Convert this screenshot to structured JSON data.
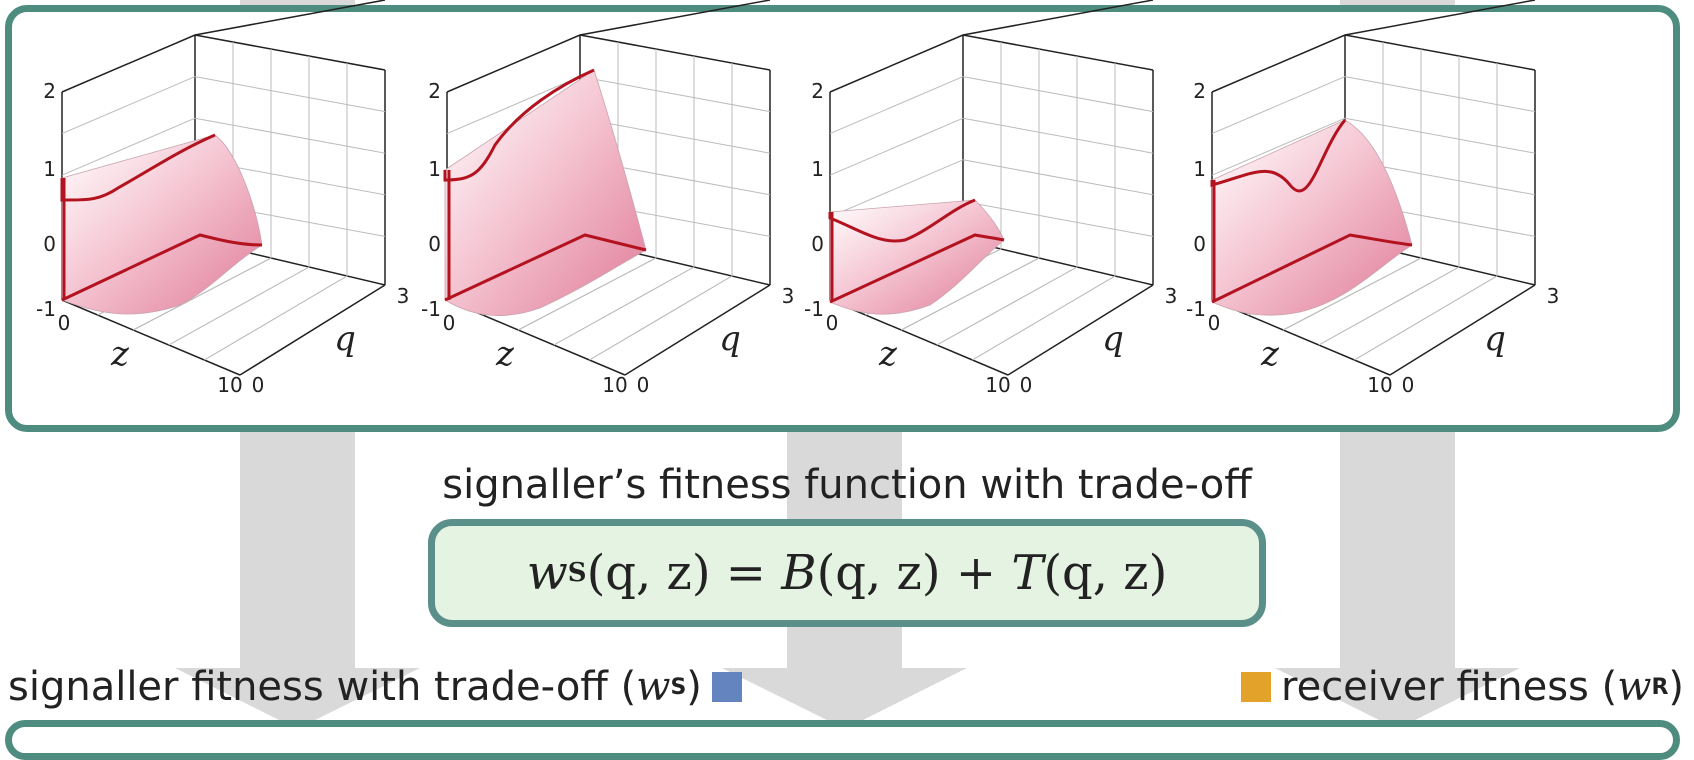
{
  "plots": [
    {
      "z_label": "z",
      "q_label": "q",
      "w_ticks": [
        "2",
        "1",
        "0",
        "-1"
      ],
      "z_ticks": [
        "0",
        "10"
      ],
      "q_ticks": [
        "0",
        "3"
      ]
    },
    {
      "z_label": "z",
      "q_label": "q",
      "w_ticks": [
        "2",
        "1",
        "0",
        "-1"
      ],
      "z_ticks": [
        "0",
        "10"
      ],
      "q_ticks": [
        "0",
        "3"
      ]
    },
    {
      "z_label": "z",
      "q_label": "q",
      "w_ticks": [
        "2",
        "1",
        "0",
        "-1"
      ],
      "z_ticks": [
        "0",
        "10"
      ],
      "q_ticks": [
        "0",
        "3"
      ]
    },
    {
      "z_label": "z",
      "q_label": "q",
      "w_ticks": [
        "2",
        "1",
        "0",
        "-1"
      ],
      "z_ticks": [
        "0",
        "10"
      ],
      "q_ticks": [
        "0",
        "3"
      ]
    }
  ],
  "caption": "signaller’s fitness function with trade-off",
  "formula": {
    "w": "w",
    "w_sub": "S",
    "lhs_args": "(q, z) = ",
    "B": "B",
    "B_args": "(q, z) + ",
    "T": "T",
    "T_args": "(q, z)"
  },
  "legend": {
    "left_text": "signaller fitness with trade-off (",
    "left_sym": "w",
    "left_sub": "S",
    "left_close": ")",
    "left_color": "#6484bf",
    "right_text": "receiver fitness (",
    "right_sym": "w",
    "right_sub": "R",
    "right_close": ")",
    "right_color": "#e3a32a"
  },
  "colors": {
    "panel_border": "#4d8c7e",
    "formula_bg": "#e4f3e2",
    "surface": "#e88ea6",
    "curve": "#b3121f",
    "arrow": "#d9d9d9"
  }
}
